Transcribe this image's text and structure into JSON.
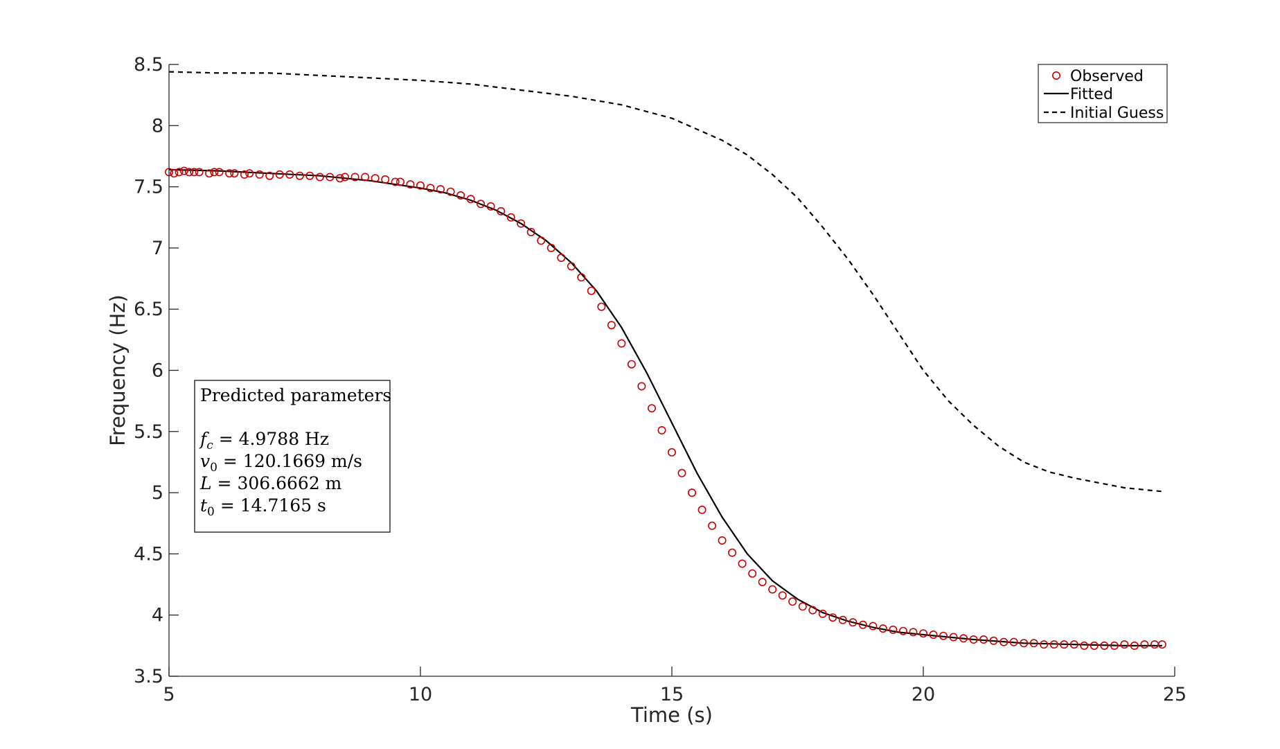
{
  "chart_data": {
    "type": "line",
    "title": "",
    "xlabel": "Time (s)",
    "ylabel": "Frequency (Hz)",
    "xlim": [
      5,
      25
    ],
    "ylim": [
      3.5,
      8.5
    ],
    "xticks": [
      5,
      10,
      15,
      20,
      25
    ],
    "xtick_labels": [
      "5",
      "10",
      "15",
      "20",
      "25"
    ],
    "yticks": [
      3.5,
      4,
      4.5,
      5,
      5.5,
      6,
      6.5,
      7,
      7.5,
      8,
      8.5
    ],
    "ytick_labels": [
      "3.5",
      "4",
      "4.5",
      "5",
      "5.5",
      "6",
      "6.5",
      "7",
      "7.5",
      "8",
      "8.5"
    ],
    "grid": false,
    "legend": {
      "location": "top-right",
      "entries": [
        "Observed",
        "Fitted",
        "Initial Guess"
      ]
    },
    "colors": {
      "observed": "#cc0000",
      "fitted": "#000000",
      "initial_guess": "#000000"
    },
    "series": [
      {
        "name": "Observed",
        "style": "red open circles",
        "x": [
          5.0,
          5.1,
          5.2,
          5.3,
          5.4,
          5.5,
          5.6,
          5.8,
          5.9,
          6.0,
          6.2,
          6.3,
          6.5,
          6.6,
          6.8,
          7.0,
          7.2,
          7.4,
          7.6,
          7.8,
          8.0,
          8.2,
          8.4,
          8.5,
          8.7,
          8.9,
          9.1,
          9.3,
          9.5,
          9.6,
          9.8,
          10.0,
          10.2,
          10.4,
          10.6,
          10.8,
          11.0,
          11.2,
          11.4,
          11.6,
          11.8,
          12.0,
          12.2,
          12.4,
          12.6,
          12.8,
          13.0,
          13.2,
          13.4,
          13.6,
          13.8,
          14.0,
          14.2,
          14.4,
          14.6,
          14.8,
          15.0,
          15.2,
          15.4,
          15.6,
          15.8,
          16.0,
          16.2,
          16.4,
          16.6,
          16.8,
          17.0,
          17.2,
          17.4,
          17.6,
          17.8,
          18.0,
          18.2,
          18.4,
          18.6,
          18.8,
          19.0,
          19.2,
          19.4,
          19.6,
          19.8,
          20.0,
          20.2,
          20.4,
          20.6,
          20.8,
          21.0,
          21.2,
          21.4,
          21.6,
          21.8,
          22.0,
          22.2,
          22.4,
          22.6,
          22.8,
          23.0,
          23.2,
          23.4,
          23.6,
          23.8,
          24.0,
          24.2,
          24.4,
          24.6,
          24.75
        ],
        "y": [
          7.62,
          7.61,
          7.62,
          7.63,
          7.62,
          7.62,
          7.62,
          7.61,
          7.62,
          7.62,
          7.61,
          7.61,
          7.6,
          7.61,
          7.6,
          7.59,
          7.6,
          7.6,
          7.59,
          7.59,
          7.58,
          7.58,
          7.57,
          7.58,
          7.58,
          7.58,
          7.57,
          7.56,
          7.54,
          7.54,
          7.52,
          7.51,
          7.49,
          7.48,
          7.46,
          7.43,
          7.4,
          7.36,
          7.34,
          7.3,
          7.25,
          7.2,
          7.13,
          7.06,
          7.0,
          6.92,
          6.85,
          6.76,
          6.65,
          6.52,
          6.37,
          6.22,
          6.05,
          5.87,
          5.69,
          5.51,
          5.33,
          5.16,
          5.0,
          4.86,
          4.73,
          4.61,
          4.51,
          4.42,
          4.34,
          4.27,
          4.21,
          4.16,
          4.11,
          4.07,
          4.04,
          4.01,
          3.98,
          3.96,
          3.94,
          3.92,
          3.91,
          3.89,
          3.88,
          3.87,
          3.86,
          3.85,
          3.84,
          3.83,
          3.82,
          3.81,
          3.8,
          3.8,
          3.79,
          3.78,
          3.78,
          3.77,
          3.77,
          3.76,
          3.76,
          3.76,
          3.76,
          3.75,
          3.75,
          3.75,
          3.75,
          3.76,
          3.75,
          3.76,
          3.76,
          3.76
        ]
      },
      {
        "name": "Fitted",
        "style": "solid black line",
        "x": [
          5.0,
          6.0,
          7.0,
          8.0,
          9.0,
          10.0,
          10.5,
          11.0,
          11.5,
          12.0,
          12.5,
          13.0,
          13.5,
          14.0,
          14.5,
          15.0,
          15.5,
          16.0,
          16.5,
          17.0,
          17.5,
          18.0,
          18.5,
          19.0,
          19.5,
          20.0,
          21.0,
          22.0,
          23.0,
          24.0,
          24.75
        ],
        "y": [
          7.64,
          7.63,
          7.61,
          7.59,
          7.55,
          7.49,
          7.45,
          7.39,
          7.31,
          7.2,
          7.06,
          6.88,
          6.65,
          6.35,
          5.98,
          5.57,
          5.16,
          4.8,
          4.5,
          4.28,
          4.13,
          4.02,
          3.95,
          3.9,
          3.86,
          3.84,
          3.8,
          3.77,
          3.76,
          3.75,
          3.75
        ]
      },
      {
        "name": "Initial Guess",
        "style": "dashed black line",
        "x": [
          5.0,
          6.0,
          7.0,
          8.0,
          9.0,
          10.0,
          11.0,
          12.0,
          13.0,
          14.0,
          15.0,
          16.0,
          16.5,
          17.0,
          17.5,
          18.0,
          18.5,
          19.0,
          19.5,
          20.0,
          20.5,
          21.0,
          21.5,
          22.0,
          22.5,
          23.0,
          23.5,
          24.0,
          24.5,
          24.75
        ],
        "y": [
          8.44,
          8.43,
          8.43,
          8.41,
          8.39,
          8.37,
          8.34,
          8.29,
          8.24,
          8.17,
          8.06,
          7.88,
          7.76,
          7.6,
          7.41,
          7.17,
          6.91,
          6.62,
          6.31,
          6.0,
          5.75,
          5.55,
          5.38,
          5.25,
          5.17,
          5.12,
          5.08,
          5.04,
          5.02,
          5.01
        ]
      }
    ],
    "annotation": {
      "title": "Predicted parameters",
      "lines": [
        {
          "symbol": "f",
          "sub": "c",
          "text": " = 4.9788 Hz"
        },
        {
          "symbol": "v",
          "sub": "0",
          "text": " = 120.1669 m/s"
        },
        {
          "symbol": "L",
          "sub": "",
          "text": " = 306.6662 m"
        },
        {
          "symbol": "t",
          "sub": "0",
          "text": " = 14.7165 s"
        }
      ]
    }
  }
}
